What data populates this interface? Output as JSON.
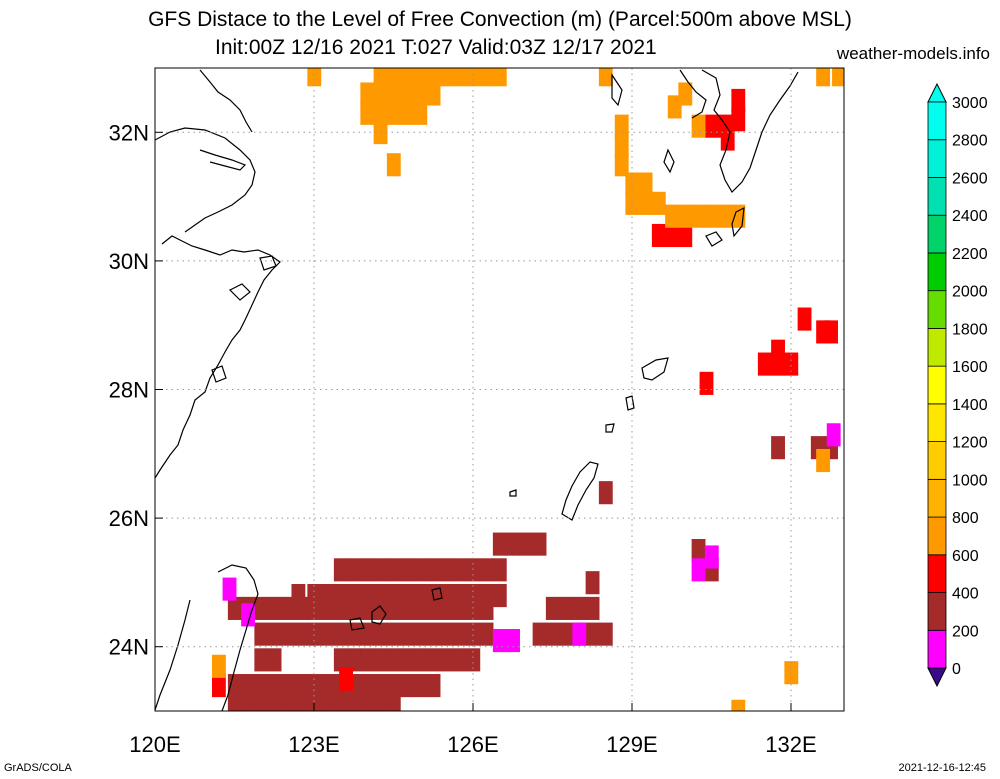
{
  "title": {
    "line1": "GFS Distace to the Level of Free Convection (m) (Parcel:500m above MSL)",
    "line2": "Init:00Z 12/16 2021 T:027 Valid:03Z 12/17 2021"
  },
  "site": "weather-models.info",
  "credit": "GrADS/COLA",
  "timestamp": "2021-12-16-12:45",
  "map": {
    "lon_range": [
      120,
      133
    ],
    "lat_range": [
      23,
      33
    ],
    "lon_ticks": [
      {
        "v": 120,
        "label": "120E"
      },
      {
        "v": 123,
        "label": "123E"
      },
      {
        "v": 126,
        "label": "126E"
      },
      {
        "v": 129,
        "label": "129E"
      },
      {
        "v": 132,
        "label": "132E"
      }
    ],
    "lat_ticks": [
      {
        "v": 24,
        "label": "24N"
      },
      {
        "v": 26,
        "label": "26N"
      },
      {
        "v": 28,
        "label": "28N"
      },
      {
        "v": 30,
        "label": "30N"
      },
      {
        "v": 32,
        "label": "32N"
      }
    ]
  },
  "colorbar": {
    "levels": [
      "0",
      "200",
      "400",
      "600",
      "800",
      "1000",
      "1200",
      "1400",
      "1600",
      "1800",
      "2000",
      "2200",
      "2400",
      "2600",
      "2800",
      "3000"
    ],
    "colors": [
      "#3a0a8c",
      "#ff00ff",
      "#a52a2a",
      "#ff0000",
      "#ff9900",
      "#ffb300",
      "#ffcc00",
      "#ffe600",
      "#ffff00",
      "#bfea00",
      "#66dd00",
      "#00cc00",
      "#00d36a",
      "#00e0b0",
      "#00f0d8",
      "#00ffee"
    ],
    "under_color": "#3a0a8c",
    "over_color": "#00ffee"
  },
  "fields": [
    {
      "color": "#a52a2a",
      "cells": [
        [
          123.5,
          25.2
        ],
        [
          123.75,
          25.2
        ],
        [
          124,
          25.2
        ],
        [
          124.25,
          25.2
        ],
        [
          124.5,
          25.2
        ],
        [
          124.75,
          25.2
        ],
        [
          125,
          25.2
        ],
        [
          125.25,
          25.2
        ],
        [
          125.5,
          25.2
        ],
        [
          125.75,
          25.2
        ],
        [
          126,
          25.2
        ],
        [
          126.25,
          25.2
        ],
        [
          126.5,
          25.2
        ],
        [
          122.7,
          24.8
        ],
        [
          123,
          24.8
        ],
        [
          123.25,
          24.8
        ],
        [
          123.5,
          24.8
        ],
        [
          123.75,
          24.8
        ],
        [
          124,
          24.8
        ],
        [
          124.25,
          24.8
        ],
        [
          124.5,
          24.8
        ],
        [
          124.75,
          24.8
        ],
        [
          125,
          24.8
        ],
        [
          125.25,
          24.8
        ],
        [
          125.5,
          24.8
        ],
        [
          125.75,
          24.8
        ],
        [
          126,
          24.8
        ],
        [
          126.25,
          24.8
        ],
        [
          126.5,
          24.8
        ],
        [
          121.5,
          24.6
        ],
        [
          121.75,
          24.6
        ],
        [
          122,
          24.6
        ],
        [
          122.25,
          24.6
        ],
        [
          122.5,
          24.6
        ],
        [
          122.75,
          24.6
        ],
        [
          123,
          24.6
        ],
        [
          123.25,
          24.6
        ],
        [
          123.5,
          24.6
        ],
        [
          123.75,
          24.6
        ],
        [
          124,
          24.6
        ],
        [
          124.25,
          24.6
        ],
        [
          124.5,
          24.6
        ],
        [
          124.75,
          24.6
        ],
        [
          125,
          24.6
        ],
        [
          125.25,
          24.6
        ],
        [
          125.5,
          24.6
        ],
        [
          125.75,
          24.6
        ],
        [
          126,
          24.6
        ],
        [
          126.25,
          24.6
        ],
        [
          127.5,
          24.6
        ],
        [
          127.75,
          24.6
        ],
        [
          128,
          24.6
        ],
        [
          128.25,
          24.6
        ],
        [
          122,
          24.2
        ],
        [
          122.25,
          24.2
        ],
        [
          122.5,
          24.2
        ],
        [
          122.75,
          24.2
        ],
        [
          123,
          24.2
        ],
        [
          123.25,
          24.2
        ],
        [
          123.5,
          24.2
        ],
        [
          123.75,
          24.2
        ],
        [
          124,
          24.2
        ],
        [
          124.25,
          24.2
        ],
        [
          124.5,
          24.2
        ],
        [
          124.75,
          24.2
        ],
        [
          125,
          24.2
        ],
        [
          125.25,
          24.2
        ],
        [
          125.5,
          24.2
        ],
        [
          125.75,
          24.2
        ],
        [
          126,
          24.2
        ],
        [
          126.25,
          24.2
        ],
        [
          127.25,
          24.2
        ],
        [
          127.5,
          24.2
        ],
        [
          127.75,
          24.2
        ],
        [
          128,
          24.2
        ],
        [
          128.25,
          24.2
        ],
        [
          128.5,
          24.2
        ],
        [
          122,
          23.8
        ],
        [
          122.25,
          23.8
        ],
        [
          123.5,
          23.8
        ],
        [
          123.75,
          23.8
        ],
        [
          124,
          23.8
        ],
        [
          124.25,
          23.8
        ],
        [
          124.5,
          23.8
        ],
        [
          124.75,
          23.8
        ],
        [
          125,
          23.8
        ],
        [
          125.25,
          23.8
        ],
        [
          125.5,
          23.8
        ],
        [
          125.75,
          23.8
        ],
        [
          126,
          23.8
        ],
        [
          121.5,
          23.4
        ],
        [
          121.75,
          23.4
        ],
        [
          122,
          23.4
        ],
        [
          122.25,
          23.4
        ],
        [
          122.5,
          23.4
        ],
        [
          122.75,
          23.4
        ],
        [
          123,
          23.4
        ],
        [
          123.25,
          23.4
        ],
        [
          123.5,
          23.4
        ],
        [
          123.75,
          23.4
        ],
        [
          124,
          23.4
        ],
        [
          124.25,
          23.4
        ],
        [
          124.5,
          23.4
        ],
        [
          124.75,
          23.4
        ],
        [
          125,
          23.4
        ],
        [
          125.25,
          23.4
        ],
        [
          121.5,
          23.1
        ],
        [
          121.75,
          23.1
        ],
        [
          122,
          23.1
        ],
        [
          122.25,
          23.1
        ],
        [
          122.5,
          23.1
        ],
        [
          122.75,
          23.1
        ],
        [
          123,
          23.1
        ],
        [
          123.25,
          23.1
        ],
        [
          123.5,
          23.1
        ],
        [
          123.75,
          23.1
        ],
        [
          124,
          23.1
        ],
        [
          124.25,
          23.1
        ],
        [
          124.5,
          23.1
        ],
        [
          126.5,
          25.6
        ],
        [
          126.75,
          25.6
        ],
        [
          127,
          25.6
        ],
        [
          127.25,
          25.6
        ],
        [
          130.25,
          25.5
        ],
        [
          130.5,
          25.2
        ],
        [
          131.75,
          27.1
        ],
        [
          132.5,
          27.1
        ],
        [
          132.75,
          27.1
        ],
        [
          128.5,
          26.4
        ],
        [
          128.25,
          25.0
        ]
      ]
    },
    {
      "color": "#ff00ff",
      "cells": [
        [
          121.4,
          24.9
        ],
        [
          121.75,
          24.5
        ],
        [
          126.5,
          24.1
        ],
        [
          126.75,
          24.1
        ],
        [
          128,
          24.2
        ],
        [
          130.5,
          25.4
        ],
        [
          130.25,
          25.2
        ],
        [
          132.8,
          27.3
        ]
      ]
    },
    {
      "color": "#ff0000",
      "cells": [
        [
          123.6,
          23.5
        ],
        [
          129.5,
          30.4
        ],
        [
          129.75,
          30.4
        ],
        [
          130,
          30.4
        ],
        [
          130.5,
          32.1
        ],
        [
          130.75,
          32.1
        ],
        [
          131,
          32.5
        ],
        [
          131,
          32.2
        ],
        [
          130.8,
          31.9
        ],
        [
          130.4,
          28.1
        ],
        [
          131.5,
          28.4
        ],
        [
          131.75,
          28.4
        ],
        [
          132,
          28.4
        ],
        [
          131.75,
          28.6
        ],
        [
          132.25,
          29.1
        ],
        [
          132.6,
          28.9
        ],
        [
          132.75,
          28.9
        ],
        [
          121.2,
          23.4
        ]
      ]
    },
    {
      "color": "#ff9900",
      "cells": [
        [
          123,
          32.9
        ],
        [
          124.25,
          32.9
        ],
        [
          124.5,
          32.9
        ],
        [
          124.75,
          32.9
        ],
        [
          125,
          32.9
        ],
        [
          125.25,
          32.9
        ],
        [
          125.5,
          32.9
        ],
        [
          125.75,
          32.9
        ],
        [
          126,
          32.9
        ],
        [
          126.25,
          32.9
        ],
        [
          126.5,
          32.9
        ],
        [
          124,
          32.6
        ],
        [
          124.25,
          32.6
        ],
        [
          124.5,
          32.6
        ],
        [
          124.75,
          32.6
        ],
        [
          125,
          32.6
        ],
        [
          125.25,
          32.6
        ],
        [
          124,
          32.3
        ],
        [
          124.25,
          32.3
        ],
        [
          124.5,
          32.3
        ],
        [
          124.75,
          32.3
        ],
        [
          125,
          32.3
        ],
        [
          124.25,
          32
        ],
        [
          124.5,
          31.5
        ],
        [
          128.8,
          32.1
        ],
        [
          128.8,
          31.8
        ],
        [
          128.8,
          31.5
        ],
        [
          129,
          31.2
        ],
        [
          129.25,
          31.2
        ],
        [
          129,
          30.9
        ],
        [
          129.25,
          30.9
        ],
        [
          129.5,
          30.9
        ],
        [
          129.75,
          30.7
        ],
        [
          130,
          30.7
        ],
        [
          130.25,
          30.7
        ],
        [
          130.5,
          30.7
        ],
        [
          130.75,
          30.7
        ],
        [
          131,
          30.7
        ],
        [
          129.8,
          32.4
        ],
        [
          130,
          32.6
        ],
        [
          130.25,
          32.1
        ],
        [
          132.6,
          32.9
        ],
        [
          132.9,
          32.9
        ],
        [
          132.6,
          26.9
        ],
        [
          132,
          23.6
        ],
        [
          131,
          23.0
        ],
        [
          121.2,
          23.7
        ],
        [
          128.5,
          32.9
        ]
      ]
    }
  ]
}
